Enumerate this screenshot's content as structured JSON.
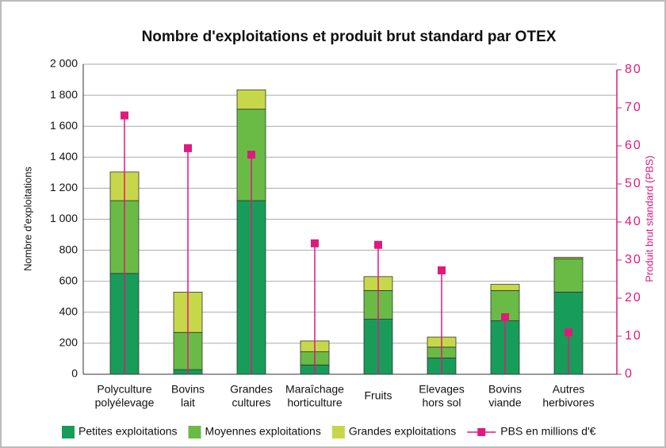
{
  "chart_data": {
    "type": "bar",
    "title": "Nombre d'exploitations et produit brut standard par OTEX",
    "y_label": "Nombre d'exploitations",
    "y2_label": "Produit brut standard (PBS)",
    "categories": [
      [
        "Polyculture",
        "polyélevage"
      ],
      [
        "Bovins",
        "lait"
      ],
      [
        "Grandes",
        "cultures"
      ],
      [
        "Maraîchage",
        "horticulture"
      ],
      [
        "Fruits"
      ],
      [
        "Elevages",
        "hors sol"
      ],
      [
        "Bovins",
        "viande"
      ],
      [
        "Autres",
        "herbivores"
      ]
    ],
    "stacked": true,
    "series": [
      {
        "name": "Petites exploitations",
        "color": "#189c5a",
        "values": [
          650,
          30,
          1120,
          60,
          355,
          105,
          345,
          530
        ]
      },
      {
        "name": "Moyennes exploitations",
        "color": "#69bb46",
        "values": [
          470,
          240,
          590,
          85,
          185,
          70,
          195,
          215
        ]
      },
      {
        "name": "Grandes exploitations",
        "color": "#c6d84a",
        "values": [
          185,
          260,
          125,
          70,
          90,
          65,
          40,
          10
        ]
      },
      {
        "name": "PBS en millions d'€",
        "color": "#e0197d",
        "axis": "y2",
        "type": "line",
        "values": [
          68,
          59.4,
          57.7,
          34.4,
          34,
          27.3,
          15,
          11
        ]
      }
    ],
    "ylim": [
      0,
      2000
    ],
    "yticks": [
      0,
      200,
      400,
      600,
      800,
      {
        "value": 1000,
        "label": "1 000"
      },
      {
        "value": 1200,
        "label": "1 200"
      },
      {
        "value": 1400,
        "label": "1 400"
      },
      {
        "value": 1600,
        "label": "1 600"
      },
      {
        "value": 1800,
        "label": "1 800"
      },
      {
        "value": 2000,
        "label": "2 000"
      }
    ],
    "y2lim": [
      0,
      80
    ],
    "y2ticks": [
      0,
      10,
      20,
      30,
      40,
      50,
      60,
      70,
      80
    ],
    "grid": true,
    "legend": "bottom"
  }
}
